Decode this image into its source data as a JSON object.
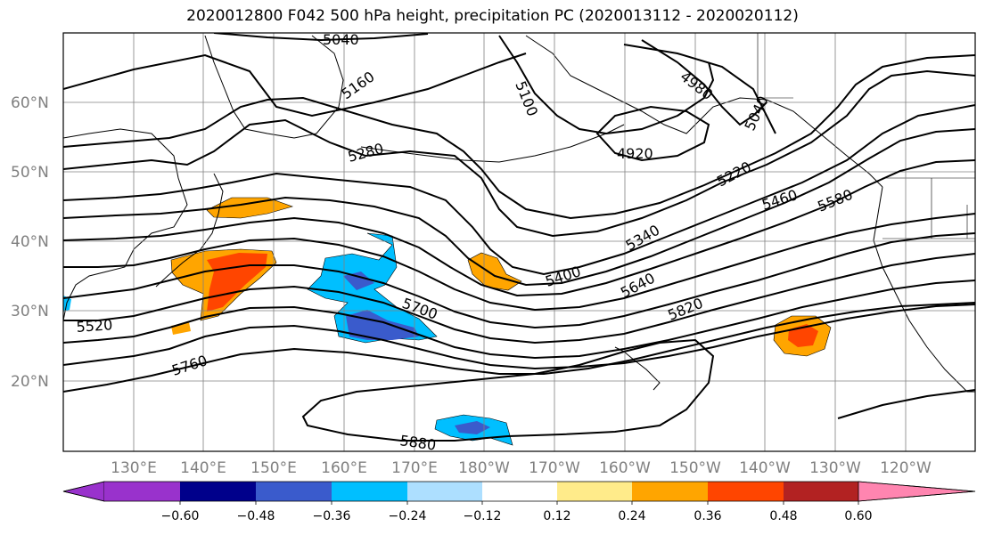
{
  "title": "2020012800 F042 500 hPa height, precipitation PC (2020013112 - 2020020112)",
  "lat_labels": [
    "60°N",
    "50°N",
    "40°N",
    "30°N",
    "20°N"
  ],
  "lon_labels": [
    "130°E",
    "140°E",
    "150°E",
    "160°E",
    "170°E",
    "180°W",
    "170°W",
    "160°W",
    "150°W",
    "140°W",
    "130°W",
    "120°W"
  ],
  "contour_labels": [
    "5040",
    "5160",
    "5100",
    "4980",
    "5040",
    "4920",
    "5280",
    "5220",
    "5460",
    "5580",
    "5340",
    "5400",
    "5640",
    "5700",
    "5820",
    "5520",
    "5760",
    "5880"
  ],
  "colorbar": {
    "ticks": [
      "−0.60",
      "−0.48",
      "−0.36",
      "−0.24",
      "−0.12",
      "0.12",
      "0.24",
      "0.36",
      "0.48",
      "0.60"
    ],
    "colors": [
      "#9932CC",
      "#00008B",
      "#3A5BCC",
      "#00BFFF",
      "#ADDFFF",
      "#FFFFFF",
      "#FFEB8A",
      "#FFA500",
      "#FF4500",
      "#B22222",
      "#FF85B0"
    ]
  }
}
